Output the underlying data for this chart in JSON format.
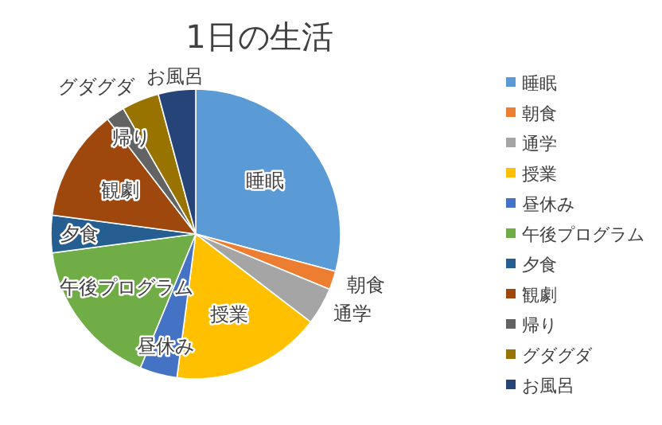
{
  "chart_data": {
    "type": "pie",
    "title": "1日の生活",
    "categories": [
      "睡眠",
      "朝食",
      "通学",
      "授業",
      "昼休み",
      "午後プログラム",
      "夕食",
      "観劇",
      "帰り",
      "グダグダ",
      "お風呂"
    ],
    "values": [
      29.16,
      2.08,
      4.17,
      16.67,
      4.17,
      16.67,
      4.17,
      12.5,
      2.08,
      4.17,
      4.17
    ],
    "colors": [
      "#5b9bd5",
      "#ed7d31",
      "#a5a5a5",
      "#ffc000",
      "#4472c4",
      "#70ad47",
      "#255e91",
      "#9e480e",
      "#636363",
      "#997300",
      "#264478"
    ],
    "legend": "right"
  }
}
